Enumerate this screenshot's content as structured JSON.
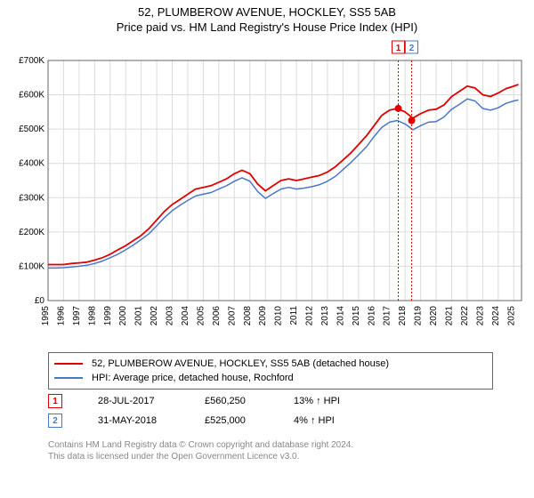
{
  "title_line1": "52, PLUMBEROW AVENUE, HOCKLEY, SS5 5AB",
  "title_line2": "Price paid vs. HM Land Registry's House Price Index (HPI)",
  "chart": {
    "type": "line",
    "background_color": "#ffffff",
    "plot_border_color": "#666666",
    "grid_color": "#dcdcdc",
    "y_axis": {
      "min": 0,
      "max": 700000,
      "ticks": [
        0,
        100000,
        200000,
        300000,
        400000,
        500000,
        600000,
        700000
      ],
      "labels": [
        "£0",
        "£100K",
        "£200K",
        "£300K",
        "£400K",
        "£500K",
        "£600K",
        "£700K"
      ]
    },
    "x_axis": {
      "min": 1995,
      "max": 2025.5,
      "ticks": [
        1995,
        1996,
        1997,
        1998,
        1999,
        2000,
        2001,
        2002,
        2003,
        2004,
        2005,
        2006,
        2007,
        2008,
        2009,
        2010,
        2011,
        2012,
        2013,
        2014,
        2015,
        2016,
        2017,
        2018,
        2019,
        2020,
        2021,
        2022,
        2023,
        2024,
        2025
      ]
    },
    "series": [
      {
        "name": "property",
        "color": "#e00000",
        "width": 1.8,
        "data": [
          [
            1995,
            105000
          ],
          [
            1995.5,
            105000
          ],
          [
            1996,
            105000
          ],
          [
            1996.5,
            108000
          ],
          [
            1997,
            110000
          ],
          [
            1997.5,
            112000
          ],
          [
            1998,
            118000
          ],
          [
            1998.5,
            125000
          ],
          [
            1999,
            135000
          ],
          [
            1999.5,
            148000
          ],
          [
            2000,
            160000
          ],
          [
            2000.5,
            175000
          ],
          [
            2001,
            190000
          ],
          [
            2001.5,
            210000
          ],
          [
            2002,
            235000
          ],
          [
            2002.5,
            260000
          ],
          [
            2003,
            280000
          ],
          [
            2003.5,
            295000
          ],
          [
            2004,
            310000
          ],
          [
            2004.5,
            325000
          ],
          [
            2005,
            330000
          ],
          [
            2005.5,
            335000
          ],
          [
            2006,
            345000
          ],
          [
            2006.5,
            355000
          ],
          [
            2007,
            370000
          ],
          [
            2007.5,
            380000
          ],
          [
            2008,
            370000
          ],
          [
            2008.5,
            340000
          ],
          [
            2009,
            320000
          ],
          [
            2009.5,
            335000
          ],
          [
            2010,
            350000
          ],
          [
            2010.5,
            355000
          ],
          [
            2011,
            350000
          ],
          [
            2011.5,
            355000
          ],
          [
            2012,
            360000
          ],
          [
            2012.5,
            365000
          ],
          [
            2013,
            375000
          ],
          [
            2013.5,
            390000
          ],
          [
            2014,
            410000
          ],
          [
            2014.5,
            430000
          ],
          [
            2015,
            455000
          ],
          [
            2015.5,
            480000
          ],
          [
            2016,
            510000
          ],
          [
            2016.5,
            540000
          ],
          [
            2017,
            555000
          ],
          [
            2017.5,
            560000
          ],
          [
            2018,
            550000
          ],
          [
            2018.5,
            532000
          ],
          [
            2019,
            545000
          ],
          [
            2019.5,
            555000
          ],
          [
            2020,
            558000
          ],
          [
            2020.5,
            570000
          ],
          [
            2021,
            595000
          ],
          [
            2021.5,
            610000
          ],
          [
            2022,
            625000
          ],
          [
            2022.5,
            620000
          ],
          [
            2023,
            600000
          ],
          [
            2023.5,
            595000
          ],
          [
            2024,
            605000
          ],
          [
            2024.5,
            618000
          ],
          [
            2025,
            625000
          ],
          [
            2025.3,
            630000
          ]
        ]
      },
      {
        "name": "hpi",
        "color": "#4a78c8",
        "width": 1.5,
        "data": [
          [
            1995,
            95000
          ],
          [
            1995.5,
            95000
          ],
          [
            1996,
            96000
          ],
          [
            1996.5,
            98000
          ],
          [
            1997,
            100000
          ],
          [
            1997.5,
            103000
          ],
          [
            1998,
            108000
          ],
          [
            1998.5,
            115000
          ],
          [
            1999,
            125000
          ],
          [
            1999.5,
            135000
          ],
          [
            2000,
            148000
          ],
          [
            2000.5,
            162000
          ],
          [
            2001,
            178000
          ],
          [
            2001.5,
            195000
          ],
          [
            2002,
            218000
          ],
          [
            2002.5,
            242000
          ],
          [
            2003,
            262000
          ],
          [
            2003.5,
            278000
          ],
          [
            2004,
            292000
          ],
          [
            2004.5,
            305000
          ],
          [
            2005,
            310000
          ],
          [
            2005.5,
            315000
          ],
          [
            2006,
            325000
          ],
          [
            2006.5,
            335000
          ],
          [
            2007,
            348000
          ],
          [
            2007.5,
            358000
          ],
          [
            2008,
            348000
          ],
          [
            2008.5,
            318000
          ],
          [
            2009,
            298000
          ],
          [
            2009.5,
            312000
          ],
          [
            2010,
            325000
          ],
          [
            2010.5,
            330000
          ],
          [
            2011,
            325000
          ],
          [
            2011.5,
            328000
          ],
          [
            2012,
            332000
          ],
          [
            2012.5,
            338000
          ],
          [
            2013,
            348000
          ],
          [
            2013.5,
            362000
          ],
          [
            2014,
            382000
          ],
          [
            2014.5,
            402000
          ],
          [
            2015,
            425000
          ],
          [
            2015.5,
            448000
          ],
          [
            2016,
            478000
          ],
          [
            2016.5,
            505000
          ],
          [
            2017,
            520000
          ],
          [
            2017.5,
            525000
          ],
          [
            2018,
            515000
          ],
          [
            2018.5,
            498000
          ],
          [
            2019,
            510000
          ],
          [
            2019.5,
            520000
          ],
          [
            2020,
            522000
          ],
          [
            2020.5,
            535000
          ],
          [
            2021,
            558000
          ],
          [
            2021.5,
            572000
          ],
          [
            2022,
            588000
          ],
          [
            2022.5,
            582000
          ],
          [
            2023,
            560000
          ],
          [
            2023.5,
            555000
          ],
          [
            2024,
            562000
          ],
          [
            2024.5,
            575000
          ],
          [
            2025,
            582000
          ],
          [
            2025.3,
            585000
          ]
        ]
      }
    ],
    "markers": [
      {
        "id": "1",
        "x": 2017.56,
        "y": 560250,
        "color": "#e00000",
        "box_color": "#e00000"
      },
      {
        "id": "2",
        "x": 2018.42,
        "y": 525000,
        "color": "#e00000",
        "box_color": "#4a78c8"
      }
    ],
    "marker_line_color": "#e00000",
    "marker_line_dash": "2,2"
  },
  "legend": [
    {
      "color": "#e00000",
      "label": "52, PLUMBEROW AVENUE, HOCKLEY, SS5 5AB (detached house)"
    },
    {
      "color": "#4a78c8",
      "label": "HPI: Average price, detached house, Rochford"
    }
  ],
  "events": [
    {
      "id": "1",
      "box_color": "#e00000",
      "date": "28-JUL-2017",
      "price": "£560,250",
      "delta": "13% ↑ HPI"
    },
    {
      "id": "2",
      "box_color": "#4a78c8",
      "date": "31-MAY-2018",
      "price": "£525,000",
      "delta": "4% ↑ HPI"
    }
  ],
  "footer_line1": "Contains HM Land Registry data © Crown copyright and database right 2024.",
  "footer_line2": "This data is licensed under the Open Government Licence v3.0."
}
